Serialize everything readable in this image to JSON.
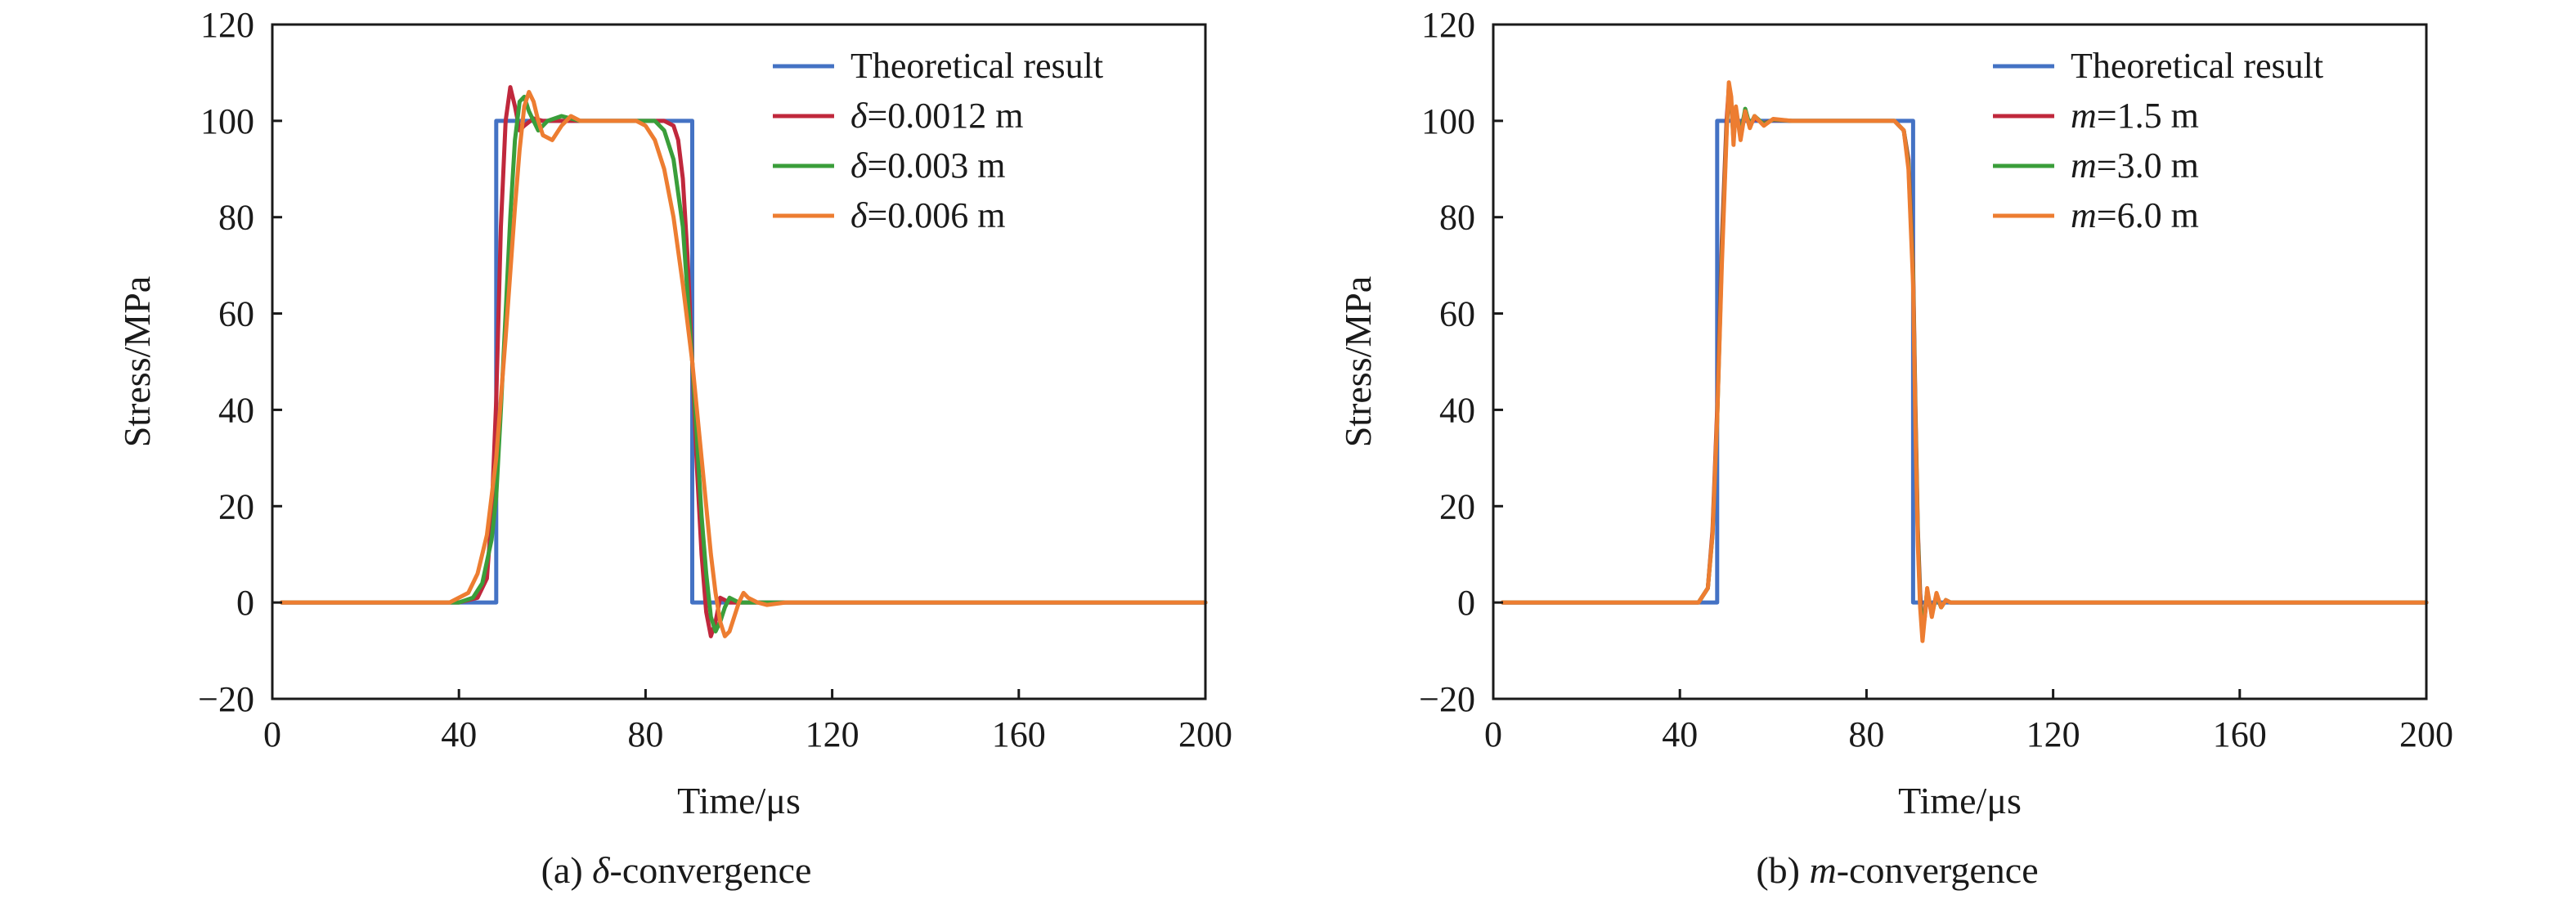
{
  "chart_data": [
    {
      "type": "line",
      "caption": "(a) δ-convergence",
      "xlabel": "Time/μs",
      "ylabel": "Stress/MPa",
      "xlim": [
        0,
        200
      ],
      "ylim": [
        -20,
        120
      ],
      "xticks": [
        0,
        40,
        80,
        120,
        160,
        200
      ],
      "yticks": [
        -20,
        0,
        20,
        40,
        60,
        80,
        100,
        120
      ],
      "ytick_labels": [
        "−20",
        "0",
        "20",
        "40",
        "60",
        "80",
        "100",
        "120"
      ],
      "legend_position": "top-right",
      "grid": false,
      "series": [
        {
          "name": "Theoretical result",
          "legend": {
            "prefix": "",
            "rest": "Theoretical result"
          },
          "color": "#4472c4",
          "x": [
            2,
            48,
            48,
            90,
            90,
            200
          ],
          "y": [
            0,
            0,
            100,
            100,
            0,
            0
          ]
        },
        {
          "name": "δ=0.0012 m",
          "legend": {
            "prefix": "δ",
            "rest": "=0.0012 m"
          },
          "color": "#c0283c",
          "x": [
            2,
            40,
            44,
            46,
            47,
            48,
            49,
            50,
            51,
            52,
            53,
            54,
            56,
            58,
            62,
            70,
            84,
            86,
            87,
            88,
            89,
            90,
            91,
            92,
            93,
            94,
            95,
            96,
            97,
            98,
            100,
            104,
            110,
            200
          ],
          "y": [
            0,
            0,
            1,
            5,
            18,
            42,
            78,
            100,
            107,
            103,
            98,
            99,
            100.5,
            100,
            100,
            100,
            100,
            99,
            96,
            88,
            72,
            50,
            28,
            10,
            -2,
            -7,
            -4,
            1,
            0.5,
            0,
            0,
            0,
            0,
            0
          ]
        },
        {
          "name": "δ=0.003 m",
          "legend": {
            "prefix": "δ",
            "rest": "=0.003 m"
          },
          "color": "#3a9e3a",
          "x": [
            2,
            40,
            43,
            45,
            47,
            48,
            49,
            50,
            51,
            52,
            53,
            54,
            55,
            57,
            59,
            62,
            66,
            70,
            82,
            84,
            86,
            88,
            90,
            92,
            93,
            94,
            95,
            96,
            97,
            98,
            99,
            100,
            102,
            105,
            110,
            200
          ],
          "y": [
            0,
            0,
            1,
            4,
            13,
            22,
            40,
            60,
            80,
            96,
            104,
            105,
            102,
            98,
            100,
            101,
            100,
            100,
            100,
            98,
            92,
            78,
            50,
            18,
            6,
            -3,
            -6,
            -4,
            -1,
            1,
            0.5,
            0,
            0,
            0,
            0,
            0
          ]
        },
        {
          "name": "δ=0.006 m",
          "legend": {
            "prefix": "δ",
            "rest": "=0.006 m"
          },
          "color": "#ed7d31",
          "x": [
            2,
            38,
            42,
            44,
            46,
            48,
            50,
            52,
            53,
            54,
            55,
            56,
            57,
            58,
            60,
            62,
            64,
            66,
            70,
            78,
            80,
            82,
            84,
            86,
            88,
            90,
            92,
            94,
            95,
            96,
            97,
            98,
            100,
            101,
            102,
            104,
            106,
            110,
            200
          ],
          "y": [
            0,
            0,
            2,
            6,
            14,
            30,
            55,
            82,
            94,
            103,
            106,
            104,
            100,
            97,
            96,
            99,
            101,
            100,
            100,
            100,
            99,
            96,
            90,
            80,
            66,
            50,
            30,
            10,
            2,
            -4,
            -7,
            -6,
            0,
            2,
            1,
            0,
            -0.5,
            0,
            0
          ]
        }
      ]
    },
    {
      "type": "line",
      "caption": "(b) m-convergence",
      "xlabel": "Time/μs",
      "ylabel": "Stress/MPa",
      "xlim": [
        0,
        200
      ],
      "ylim": [
        -20,
        120
      ],
      "xticks": [
        0,
        40,
        80,
        120,
        160,
        200
      ],
      "yticks": [
        -20,
        0,
        20,
        40,
        60,
        80,
        100,
        120
      ],
      "ytick_labels": [
        "−20",
        "0",
        "20",
        "40",
        "60",
        "80",
        "100",
        "120"
      ],
      "legend_position": "top-right",
      "grid": false,
      "series": [
        {
          "name": "Theoretical result",
          "legend": {
            "prefix": "",
            "rest": "Theoretical result"
          },
          "color": "#4472c4",
          "x": [
            2,
            48,
            48,
            90,
            90,
            200
          ],
          "y": [
            0,
            0,
            100,
            100,
            0,
            0
          ]
        },
        {
          "name": "m=1.5 m",
          "legend": {
            "prefix": "m",
            "rest": "=1.5 m"
          },
          "color": "#c0283c",
          "x": [
            2,
            44,
            46,
            47,
            48,
            49,
            50,
            50.5,
            51,
            51.5,
            52,
            53,
            54,
            55,
            56,
            58,
            60,
            64,
            70,
            86,
            88,
            89,
            90,
            90.5,
            91,
            91.5,
            92,
            92.5,
            93,
            94,
            95,
            96,
            97,
            98,
            100,
            104,
            200
          ],
          "y": [
            0,
            0,
            3,
            15,
            40,
            75,
            100,
            107,
            103,
            97,
            101,
            98,
            102,
            99,
            100.5,
            99.5,
            100.2,
            100,
            100,
            100,
            98,
            92,
            70,
            40,
            15,
            2,
            -6,
            -3,
            2,
            -2,
            1.5,
            -1,
            0.5,
            0,
            0,
            0,
            0
          ]
        },
        {
          "name": "m=3.0 m",
          "legend": {
            "prefix": "m",
            "rest": "=3.0 m"
          },
          "color": "#3a9e3a",
          "x": [
            2,
            44,
            46,
            47,
            48,
            49,
            50,
            50.5,
            51,
            51.5,
            52,
            53,
            54,
            55,
            56,
            58,
            60,
            64,
            70,
            86,
            88,
            89,
            90,
            90.5,
            91,
            91.5,
            92,
            92.5,
            93,
            94,
            95,
            96,
            97,
            98,
            100,
            104,
            200
          ],
          "y": [
            0,
            0,
            3,
            14,
            38,
            72,
            98,
            106,
            104,
            96,
            102,
            97,
            102.5,
            99,
            101,
            99.3,
            100.3,
            100,
            100,
            100,
            98,
            91,
            68,
            38,
            14,
            0,
            -7,
            -2,
            2.5,
            -2.5,
            1.5,
            -1,
            0.5,
            0,
            0,
            0,
            0
          ]
        },
        {
          "name": "m=6.0 m",
          "legend": {
            "prefix": "m",
            "rest": "=6.0 m"
          },
          "color": "#ed7d31",
          "x": [
            2,
            44,
            46,
            47,
            48,
            49,
            50,
            50.5,
            51,
            51.5,
            52,
            53,
            54,
            55,
            56,
            58,
            60,
            64,
            70,
            86,
            88,
            89,
            90,
            90.5,
            91,
            91.5,
            92,
            92.5,
            93,
            94,
            95,
            96,
            97,
            98,
            100,
            104,
            200
          ],
          "y": [
            0,
            0,
            3,
            14,
            38,
            70,
            97,
            108,
            105,
            95,
            103,
            96,
            102,
            98.5,
            101,
            99,
            100.4,
            100,
            100,
            100,
            98,
            90,
            66,
            36,
            12,
            -1,
            -8,
            -3,
            3,
            -3,
            2,
            -1,
            0.5,
            0,
            0,
            0,
            0
          ]
        }
      ]
    }
  ]
}
